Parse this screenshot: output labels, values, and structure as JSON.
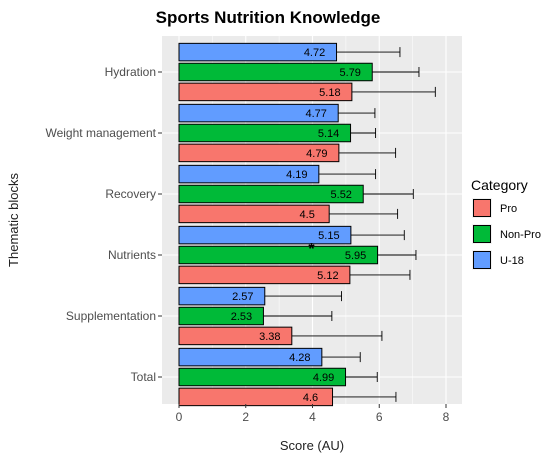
{
  "chart_data": {
    "type": "bar",
    "orientation": "horizontal",
    "title": "Sports Nutrition Knowledge",
    "xlabel": "Score (AU)",
    "ylabel": "Thematic blocks",
    "xlim": [
      0,
      8
    ],
    "xticks": [
      "0",
      "2",
      "4",
      "6",
      "8"
    ],
    "categories": [
      "Hydration",
      "Weight management",
      "Recovery",
      "Nutrients",
      "Supplementation",
      "Total"
    ],
    "series": [
      {
        "name": "U-18",
        "color": "#619CFF",
        "values": [
          4.72,
          4.77,
          4.19,
          5.15,
          2.57,
          4.28
        ],
        "labels": [
          "4.72",
          "4.77",
          "4.19",
          "5.15",
          "2.57",
          "4.28"
        ],
        "errors": [
          1.9,
          1.1,
          1.7,
          1.6,
          2.3,
          1.15
        ]
      },
      {
        "name": "Non-Pro",
        "color": "#00BA38",
        "values": [
          5.79,
          5.14,
          5.52,
          5.95,
          2.53,
          4.99
        ],
        "labels": [
          "5.79",
          "5.14",
          "5.52",
          "5.95",
          "2.53",
          "4.99"
        ],
        "errors": [
          1.4,
          0.75,
          1.5,
          1.15,
          2.05,
          0.95
        ]
      },
      {
        "name": "Pro",
        "color": "#F8766D",
        "values": [
          5.18,
          4.79,
          4.5,
          5.12,
          3.38,
          4.6
        ],
        "labels": [
          "5.18",
          "4.79",
          "4.5",
          "5.12",
          "3.38",
          "4.6"
        ],
        "errors": [
          2.5,
          1.7,
          2.05,
          1.8,
          2.7,
          1.9
        ]
      }
    ],
    "annotation": {
      "text": "*",
      "category": "Nutrients"
    },
    "legend": {
      "title": "Category",
      "position": "right",
      "entries": [
        {
          "name": "Pro",
          "color": "#F8766D"
        },
        {
          "name": "Non-Pro",
          "color": "#00BA38"
        },
        {
          "name": "U-18",
          "color": "#619CFF"
        }
      ]
    },
    "grid": true,
    "panel_background": "#EBEBEB"
  }
}
